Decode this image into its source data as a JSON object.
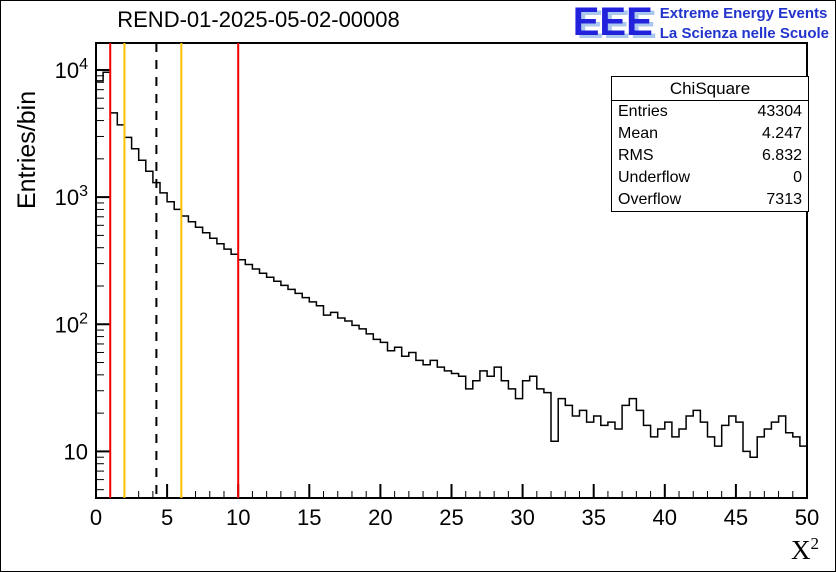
{
  "logo": {
    "acronym": "EEE",
    "line1": "Extreme Energy Events",
    "line2": "La Scienza nelle Scuole",
    "color": "#2222dd",
    "shadow_color": "#aac8ee"
  },
  "stats_box": {
    "title": "ChiSquare",
    "rows": [
      {
        "label": "Entries",
        "value": "43304"
      },
      {
        "label": "Mean",
        "value": "4.247"
      },
      {
        "label": "RMS",
        "value": "6.832"
      },
      {
        "label": "Underflow",
        "value": "0"
      },
      {
        "label": "Overflow",
        "value": "7313"
      }
    ]
  },
  "axes": {
    "x_title_base": "X",
    "x_title_exp": "2"
  },
  "chart_data": {
    "type": "bar",
    "title": "REND-01-2025-05-02-00008",
    "xlabel": "X^2",
    "ylabel": "Entries/bin",
    "x_min": 0,
    "x_max": 50,
    "bin_width": 0.5,
    "y_scale": "log",
    "ylim": [
      4.3,
      16300
    ],
    "x_major_ticks": [
      0,
      5,
      10,
      15,
      20,
      25,
      30,
      35,
      40,
      45,
      50
    ],
    "y_major_ticks": [
      10,
      100,
      1000,
      10000
    ],
    "grid": false,
    "legend": "none",
    "values": [
      8200,
      9600,
      4600,
      3700,
      2950,
      2400,
      1950,
      1600,
      1300,
      1080,
      920,
      800,
      710,
      640,
      580,
      525,
      475,
      430,
      390,
      355,
      322,
      295,
      272,
      252,
      234,
      218,
      202,
      188,
      175,
      162,
      150,
      140,
      118,
      124,
      112,
      106,
      98,
      92,
      84,
      76,
      72,
      62,
      66,
      56,
      60,
      52,
      48,
      52,
      46,
      43,
      41,
      39,
      31,
      36,
      43,
      39,
      46,
      36,
      31,
      26,
      36,
      39,
      31,
      29,
      12,
      26,
      23,
      19,
      21,
      17,
      19,
      16,
      17,
      15,
      23,
      26,
      21,
      16,
      13,
      15,
      17,
      13,
      15,
      19,
      21,
      17,
      13,
      11,
      16,
      19,
      17,
      10,
      9,
      13,
      15,
      17,
      19,
      14,
      13,
      11
    ],
    "cut_lines": [
      {
        "x": 1,
        "color": "#f20000",
        "style": "solid"
      },
      {
        "x": 2,
        "color": "#fcc200",
        "style": "solid"
      },
      {
        "x": 4.247,
        "color": "#000000",
        "style": "dashed"
      },
      {
        "x": 6,
        "color": "#fcc200",
        "style": "solid"
      },
      {
        "x": 10,
        "color": "#f20000",
        "style": "solid"
      }
    ],
    "stats": {
      "entries": 43304,
      "mean": 4.247,
      "rms": 6.832,
      "underflow": 0,
      "overflow": 7313
    }
  }
}
